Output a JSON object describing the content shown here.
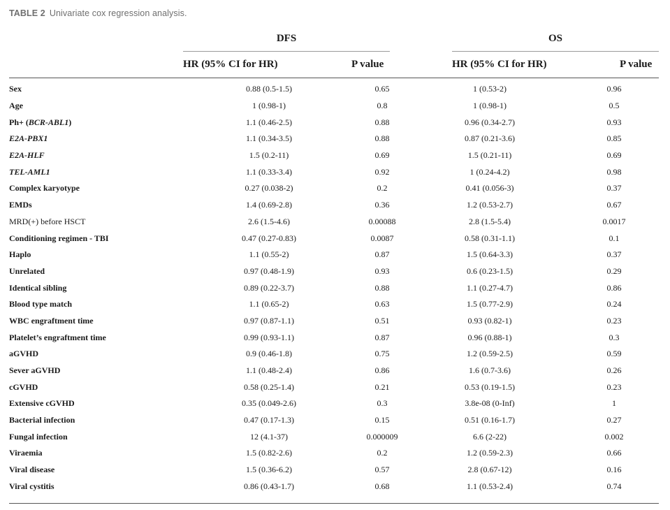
{
  "caption": {
    "label": "TABLE 2",
    "title": "Univariate cox regression analysis."
  },
  "groups": {
    "dfs": "DFS",
    "os": "OS"
  },
  "headers": {
    "hr": "HR (95% CI for HR)",
    "p": "P value"
  },
  "rows": [
    {
      "variable": "Sex",
      "dfs_hr": "0.88 (0.5-1.5)",
      "dfs_p": "0.65",
      "os_hr": "1 (0.53-2)",
      "os_p": "0.96"
    },
    {
      "variable": "Age",
      "dfs_hr": "1 (0.98-1)",
      "dfs_p": "0.8",
      "os_hr": "1 (0.98-1)",
      "os_p": "0.5"
    },
    {
      "variable_prefix": "Ph+ (",
      "variable_italic": "BCR-ABL1",
      "variable_suffix": ")",
      "dfs_hr": "1.1 (0.46-2.5)",
      "dfs_p": "0.88",
      "os_hr": "0.96 (0.34-2.7)",
      "os_p": "0.93"
    },
    {
      "variable": "E2A-PBX1",
      "dfs_hr": "1.1 (0.34-3.5)",
      "dfs_p": "0.88",
      "os_hr": "0.87 (0.21-3.6)",
      "os_p": "0.85"
    },
    {
      "variable": "E2A-HLF",
      "dfs_hr": "1.5 (0.2-11)",
      "dfs_p": "0.69",
      "os_hr": "1.5 (0.21-11)",
      "os_p": "0.69"
    },
    {
      "variable": "TEL-AML1",
      "dfs_hr": "1.1 (0.33-3.4)",
      "dfs_p": "0.92",
      "os_hr": "1 (0.24-4.2)",
      "os_p": "0.98"
    },
    {
      "variable": "Complex karyotype",
      "dfs_hr": "0.27 (0.038-2)",
      "dfs_p": "0.2",
      "os_hr": "0.41 (0.056-3)",
      "os_p": "0.37"
    },
    {
      "variable": "EMDs",
      "dfs_hr": "1.4 (0.69-2.8)",
      "dfs_p": "0.36",
      "os_hr": "1.2 (0.53-2.7)",
      "os_p": "0.67"
    },
    {
      "variable": "MRD(+) before HSCT",
      "dfs_hr": "2.6 (1.5-4.6)",
      "dfs_p": "0.00088",
      "os_hr": "2.8 (1.5-5.4)",
      "os_p": "0.0017"
    },
    {
      "variable": "Conditioning regimen - TBI",
      "dfs_hr": "0.47 (0.27-0.83)",
      "dfs_p": "0.0087",
      "os_hr": "0.58 (0.31-1.1)",
      "os_p": "0.1"
    },
    {
      "variable": "Haplo",
      "dfs_hr": "1.1 (0.55-2)",
      "dfs_p": "0.87",
      "os_hr": "1.5 (0.64-3.3)",
      "os_p": "0.37"
    },
    {
      "variable": "Unrelated",
      "dfs_hr": "0.97 (0.48-1.9)",
      "dfs_p": "0.93",
      "os_hr": "0.6 (0.23-1.5)",
      "os_p": "0.29"
    },
    {
      "variable": "Identical sibling",
      "dfs_hr": "0.89 (0.22-3.7)",
      "dfs_p": "0.88",
      "os_hr": "1.1 (0.27-4.7)",
      "os_p": "0.86"
    },
    {
      "variable": "Blood type match",
      "dfs_hr": "1.1 (0.65-2)",
      "dfs_p": "0.63",
      "os_hr": "1.5 (0.77-2.9)",
      "os_p": "0.24"
    },
    {
      "variable": "WBC engraftment time",
      "dfs_hr": "0.97 (0.87-1.1)",
      "dfs_p": "0.51",
      "os_hr": "0.93 (0.82-1)",
      "os_p": "0.23"
    },
    {
      "variable": "Platelet’s engraftment time",
      "dfs_hr": "0.99 (0.93-1.1)",
      "dfs_p": "0.87",
      "os_hr": "0.96 (0.88-1)",
      "os_p": "0.3"
    },
    {
      "variable": "aGVHD",
      "dfs_hr": "0.9 (0.46-1.8)",
      "dfs_p": "0.75",
      "os_hr": "1.2 (0.59-2.5)",
      "os_p": "0.59"
    },
    {
      "variable": "Sever aGVHD",
      "dfs_hr": "1.1 (0.48-2.4)",
      "dfs_p": "0.86",
      "os_hr": "1.6 (0.7-3.6)",
      "os_p": "0.26"
    },
    {
      "variable": "cGVHD",
      "dfs_hr": "0.58 (0.25-1.4)",
      "dfs_p": "0.21",
      "os_hr": "0.53 (0.19-1.5)",
      "os_p": "0.23"
    },
    {
      "variable": "Extensive cGVHD",
      "dfs_hr": "0.35 (0.049-2.6)",
      "dfs_p": "0.3",
      "os_hr": "3.8e-08 (0-Inf)",
      "os_p": "1"
    },
    {
      "variable": "Bacterial infection",
      "dfs_hr": "0.47 (0.17-1.3)",
      "dfs_p": "0.15",
      "os_hr": "0.51 (0.16-1.7)",
      "os_p": "0.27"
    },
    {
      "variable": "Fungal infection",
      "dfs_hr": "12 (4.1-37)",
      "dfs_p": "0.000009",
      "os_hr": "6.6 (2-22)",
      "os_p": "0.002"
    },
    {
      "variable": "Viraemia",
      "dfs_hr": "1.5 (0.82-2.6)",
      "dfs_p": "0.2",
      "os_hr": "1.2 (0.59-2.3)",
      "os_p": "0.66"
    },
    {
      "variable": "Viral disease",
      "dfs_hr": "1.5 (0.36-6.2)",
      "dfs_p": "0.57",
      "os_hr": "2.8 (0.67-12)",
      "os_p": "0.16"
    },
    {
      "variable": "Viral cystitis",
      "dfs_hr": "0.86 (0.43-1.7)",
      "dfs_p": "0.68",
      "os_hr": "1.1 (0.53-2.4)",
      "os_p": "0.74"
    }
  ]
}
